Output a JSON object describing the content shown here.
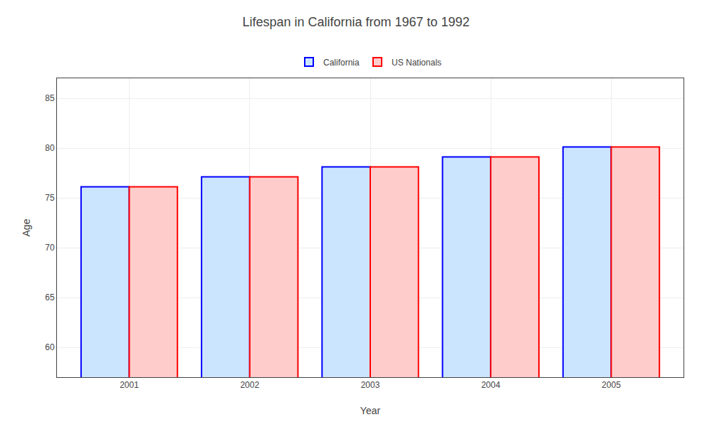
{
  "chart_data": {
    "type": "bar",
    "title": "Lifespan in California from 1967 to 1992",
    "xlabel": "Year",
    "ylabel": "Age",
    "categories": [
      "2001",
      "2002",
      "2003",
      "2004",
      "2005"
    ],
    "series": [
      {
        "name": "California",
        "color": "#cce5ff",
        "values": [
          76.1,
          77.1,
          78.1,
          79.1,
          80.1
        ]
      },
      {
        "name": "US Nationals",
        "color": "#ffcccc",
        "values": [
          76.1,
          77.1,
          78.1,
          79.1,
          80.1
        ]
      }
    ],
    "ylim": [
      57,
      87
    ],
    "yticks": [
      60,
      65,
      70,
      75,
      80,
      85
    ],
    "grid": true,
    "legend": "top"
  }
}
